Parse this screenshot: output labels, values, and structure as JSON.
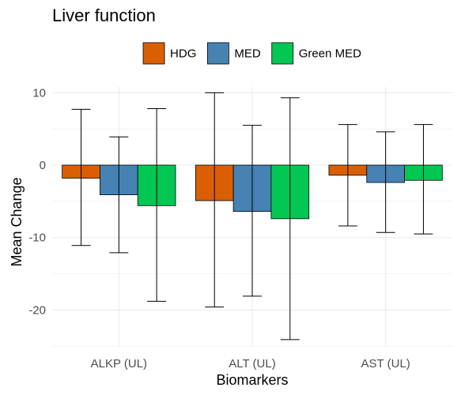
{
  "chart_data": {
    "type": "bar",
    "title": "Liver function",
    "xlabel": "Biomarkers",
    "ylabel": "Mean Change",
    "categories": [
      "ALKP (UL)",
      "ALT (UL)",
      "AST (UL)"
    ],
    "series": [
      {
        "name": "HDG",
        "color": "#d95f02",
        "values": [
          -1.8,
          -4.9,
          -1.4
        ],
        "error_low": [
          -11.1,
          -19.6,
          -8.4
        ],
        "error_high": [
          7.7,
          10.0,
          5.6
        ]
      },
      {
        "name": "MED",
        "color": "#4682b4",
        "values": [
          -4.1,
          -6.4,
          -2.4
        ],
        "error_low": [
          -12.1,
          -18.1,
          -9.3
        ],
        "error_high": [
          3.9,
          5.5,
          4.6
        ]
      },
      {
        "name": "Green MED",
        "color": "#00c853",
        "values": [
          -5.6,
          -7.4,
          -2.1
        ],
        "error_low": [
          -18.8,
          -24.1,
          -9.5
        ],
        "error_high": [
          7.8,
          9.3,
          5.6
        ]
      }
    ],
    "ylim": [
      -25.2,
      10.8
    ],
    "yticks": [
      10,
      0,
      -10,
      -20
    ],
    "grid": true,
    "legend_position": "top"
  }
}
